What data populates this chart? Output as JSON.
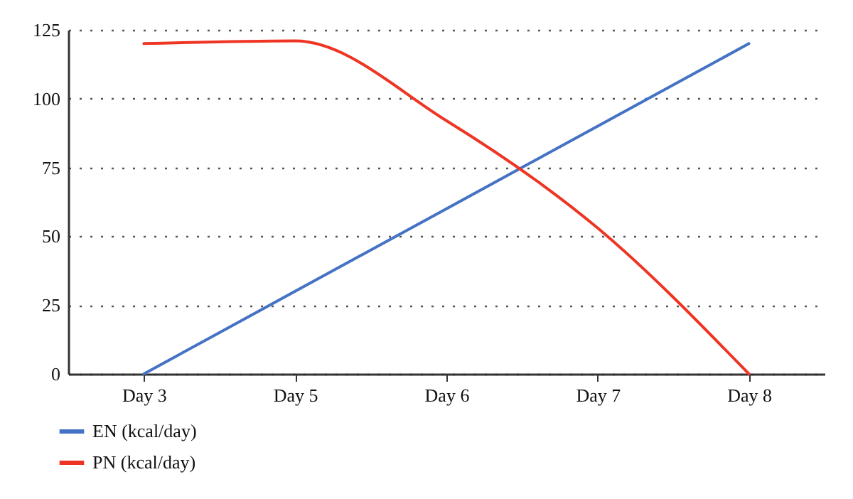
{
  "chart_data": {
    "type": "line",
    "categories": [
      "Day 3",
      "Day 5",
      "Day 6",
      "Day 7",
      "Day 8"
    ],
    "series": [
      {
        "name": "EN (kcal/day)",
        "color": "#4472c4",
        "values": [
          0,
          30,
          60,
          90,
          120
        ]
      },
      {
        "name": "PN (kcal/day)",
        "color": "#ee3524",
        "values": [
          120,
          121,
          92,
          53,
          0
        ]
      }
    ],
    "ylim": [
      0,
      125
    ],
    "yticks": [
      0,
      25,
      50,
      75,
      100,
      125
    ],
    "grid": "y",
    "legend": "bottom left",
    "marker": "none",
    "line_style": "solid"
  }
}
